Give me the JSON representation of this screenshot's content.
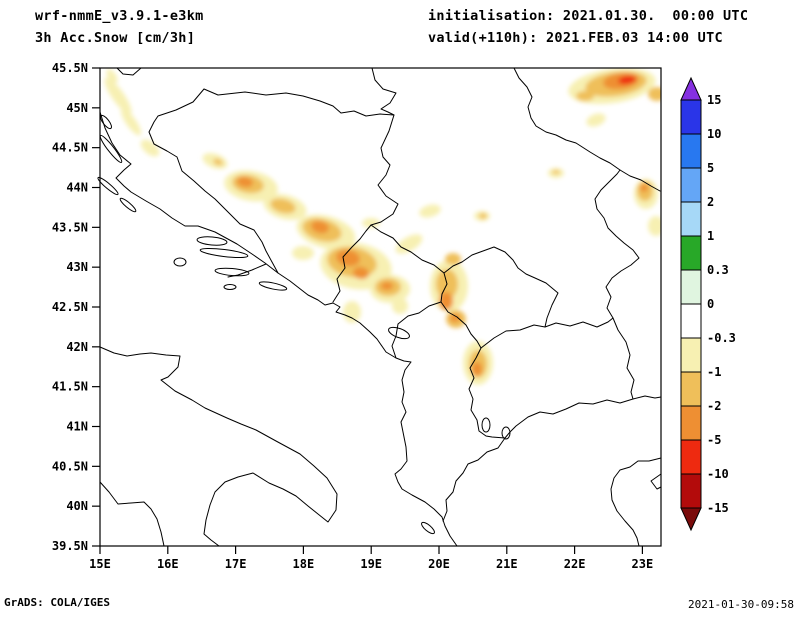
{
  "header": {
    "model": "wrf-nmmE_v3.9.1-e3km",
    "product": "3h Acc.Snow [cm/3h]",
    "initialisation": "initialisation: 2021.01.30.  00:00 UTC",
    "valid": "valid(+110h): 2021.FEB.03 14:00 UTC"
  },
  "axes": {
    "y_labels": [
      "45.5N",
      "45N",
      "44.5N",
      "44N",
      "43.5N",
      "43N",
      "42.5N",
      "42N",
      "41.5N",
      "41N",
      "40.5N",
      "40N",
      "39.5N"
    ],
    "x_labels": [
      "15E",
      "16E",
      "17E",
      "18E",
      "19E",
      "20E",
      "21E",
      "22E",
      "23E"
    ]
  },
  "colorbar": {
    "labels": [
      "15",
      "10",
      "5",
      "2",
      "1",
      "0.3",
      "0",
      "-0.3",
      "-1",
      "-2",
      "-5",
      "-10",
      "-15"
    ],
    "segment_colors": [
      "#2a35e8",
      "#2878f0",
      "#64a6f6",
      "#a6d8f7",
      "#28a828",
      "#e0f5e0",
      "#ffffff",
      "#f7f0b2",
      "#efbf5a",
      "#ee8f33",
      "#ee2a10",
      "#b30b0b"
    ],
    "arrow_top_color": "#8530e0",
    "arrow_bottom_color": "#7a0b0b"
  },
  "snow": {
    "levels": {
      "pale": "#f7f0b2",
      "gold": "#efbf5a",
      "orange": "#ee8f33",
      "red": "#ee2a10"
    },
    "blobs": [
      [
        "pale",
        118,
        96,
        22,
        6,
        55
      ],
      [
        "pale",
        131,
        122,
        16,
        5,
        55
      ],
      [
        "pale",
        112,
        76,
        8,
        4,
        55
      ],
      [
        "pale",
        150,
        148,
        11,
        6,
        40
      ],
      [
        "pale",
        215,
        161,
        13,
        7,
        20
      ],
      [
        "gold",
        218,
        162,
        5,
        3,
        20
      ],
      [
        "pale",
        251,
        186,
        27,
        15,
        10
      ],
      [
        "gold",
        248,
        184,
        16,
        9,
        10
      ],
      [
        "orange",
        245,
        182,
        8,
        5,
        10
      ],
      [
        "pale",
        285,
        207,
        22,
        12,
        15
      ],
      [
        "gold",
        283,
        206,
        13,
        7,
        15
      ],
      [
        "pale",
        326,
        232,
        30,
        16,
        15
      ],
      [
        "gold",
        322,
        230,
        20,
        11,
        15
      ],
      [
        "orange",
        320,
        227,
        9,
        6,
        15
      ],
      [
        "pale",
        356,
        266,
        36,
        23,
        10
      ],
      [
        "gold",
        352,
        262,
        25,
        15,
        10
      ],
      [
        "orange",
        348,
        258,
        12,
        8,
        10
      ],
      [
        "orange",
        361,
        273,
        8,
        6,
        10
      ],
      [
        "pale",
        390,
        289,
        20,
        14,
        0
      ],
      [
        "gold",
        388,
        287,
        13,
        9,
        0
      ],
      [
        "orange",
        387,
        286,
        6,
        4,
        0
      ],
      [
        "pale",
        409,
        244,
        15,
        7,
        -30
      ],
      [
        "pale",
        430,
        211,
        11,
        6,
        -15
      ],
      [
        "pale",
        371,
        223,
        9,
        5,
        0
      ],
      [
        "pale",
        303,
        253,
        11,
        7,
        0
      ],
      [
        "pale",
        449,
        286,
        19,
        26,
        0
      ],
      [
        "gold",
        447,
        284,
        11,
        15,
        0
      ],
      [
        "orange",
        446,
        301,
        7,
        9,
        0
      ],
      [
        "gold",
        453,
        259,
        8,
        6,
        0
      ],
      [
        "gold",
        456,
        319,
        10,
        9,
        0
      ],
      [
        "orange",
        455,
        318,
        5,
        4,
        0
      ],
      [
        "pale",
        478,
        363,
        15,
        22,
        0
      ],
      [
        "gold",
        478,
        364,
        9,
        14,
        0
      ],
      [
        "orange",
        477,
        369,
        5,
        7,
        0
      ],
      [
        "pale",
        352,
        312,
        9,
        11,
        0
      ],
      [
        "pale",
        400,
        306,
        8,
        8,
        0
      ],
      [
        "pale",
        482,
        216,
        8,
        5,
        0
      ],
      [
        "gold",
        483,
        216,
        4,
        3,
        0
      ],
      [
        "pale",
        596,
        120,
        10,
        6,
        -20
      ],
      [
        "pale",
        612,
        86,
        44,
        17,
        -8
      ],
      [
        "gold",
        616,
        84,
        31,
        12,
        -8
      ],
      [
        "orange",
        621,
        81,
        18,
        8,
        -8
      ],
      [
        "red",
        627,
        80,
        9,
        4,
        -8
      ],
      [
        "gold",
        585,
        96,
        9,
        5,
        0
      ],
      [
        "gold",
        657,
        94,
        9,
        7,
        0
      ],
      [
        "pale",
        646,
        194,
        12,
        15,
        0
      ],
      [
        "gold",
        645,
        191,
        8,
        10,
        0
      ],
      [
        "orange",
        644,
        188,
        4,
        4,
        0
      ],
      [
        "pale",
        656,
        226,
        8,
        10,
        0
      ],
      [
        "pale",
        556,
        173,
        8,
        5,
        0
      ],
      [
        "gold",
        556,
        172,
        4,
        2,
        0
      ]
    ]
  },
  "footer": {
    "left": "GrADS: COLA/IGES",
    "right": "2021-01-30-09:58"
  },
  "chart_data": {
    "type": "heatmap",
    "title": "wrf-nmmE_v3.9.1-e3km 3h Acc.Snow [cm/3h]",
    "x_ticks": [
      "15E",
      "16E",
      "17E",
      "18E",
      "19E",
      "20E",
      "21E",
      "22E",
      "23E"
    ],
    "y_ticks": [
      "39.5N",
      "40N",
      "40.5N",
      "41N",
      "41.5N",
      "42N",
      "42.5N",
      "43N",
      "43.5N",
      "44N",
      "44.5N",
      "45N",
      "45.5N"
    ],
    "x_range": [
      15,
      23.3
    ],
    "y_range": [
      39.5,
      45.5
    ],
    "scale_levels": [
      15,
      10,
      5,
      2,
      1,
      0.3,
      0,
      -0.3,
      -1,
      -2,
      -5,
      -10,
      -15
    ],
    "legend_position": "right"
  }
}
